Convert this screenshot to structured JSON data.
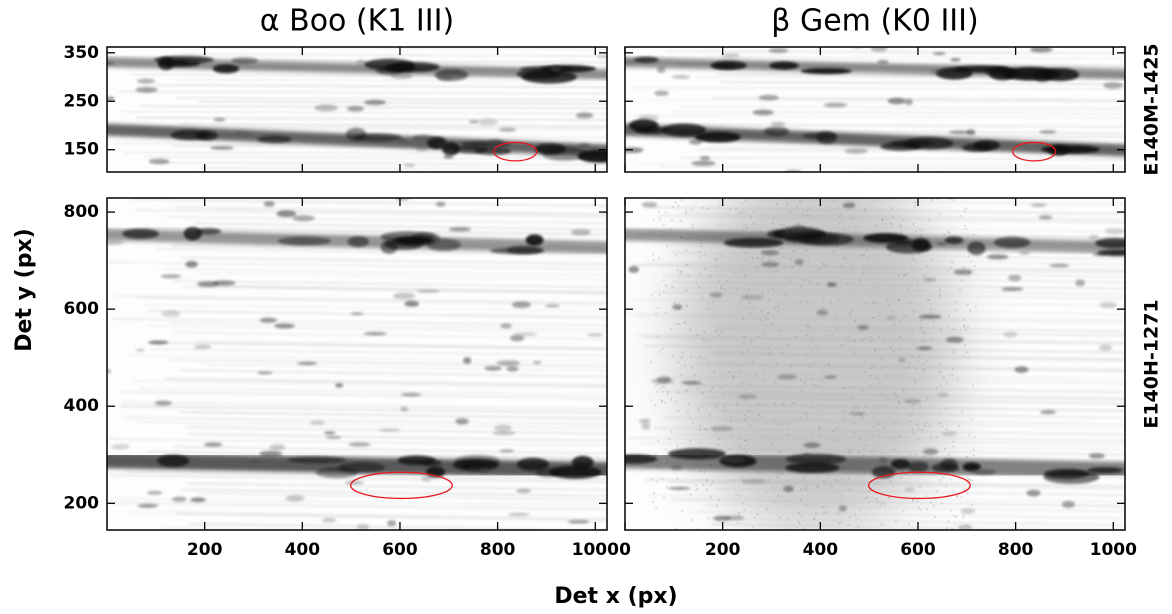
{
  "chart_data": [
    {
      "type": "image",
      "title": "α Boo (K1 III)",
      "xlim": [
        0,
        1024
      ],
      "ylim": [
        104,
        362
      ],
      "yticks": [
        150,
        250,
        350
      ],
      "ellipse": {
        "cx": 836,
        "cy": 146,
        "rx": 44,
        "ry": 19,
        "color": "#e8191e"
      }
    },
    {
      "type": "image",
      "title": "β Gem (K0 III)",
      "row_label": "E140M-1425",
      "xlim": [
        0,
        1024
      ],
      "ylim": [
        104,
        362
      ],
      "ellipse": {
        "cx": 838,
        "cy": 146,
        "rx": 44,
        "ry": 19,
        "color": "#e8191e"
      }
    },
    {
      "type": "image",
      "ylabel": "Det y (px)",
      "xlabel": "Det x (px)",
      "xlim": [
        0,
        1024
      ],
      "ylim": [
        145,
        829
      ],
      "xticks": [
        200,
        400,
        600,
        800,
        1000
      ],
      "yticks": [
        200,
        400,
        600,
        800
      ],
      "ellipse": {
        "cx": 603,
        "cy": 237,
        "rx": 104,
        "ry": 27,
        "color": "#e8191e"
      }
    },
    {
      "type": "image",
      "row_label": "E140H-1271",
      "xlim": [
        0,
        1024
      ],
      "ylim": [
        145,
        829
      ],
      "xticks": [
        0,
        200,
        400,
        600,
        800,
        1000
      ],
      "noise": true,
      "ellipse": {
        "cx": 603,
        "cy": 237,
        "rx": 104,
        "ry": 27,
        "color": "#e8191e"
      }
    }
  ]
}
